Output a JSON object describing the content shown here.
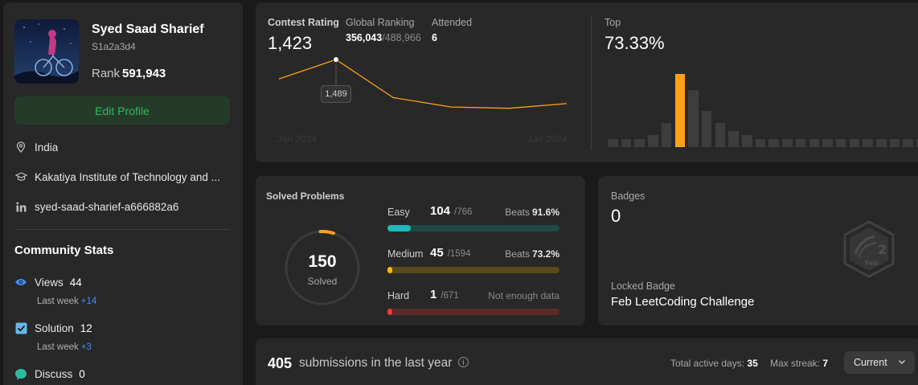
{
  "profile": {
    "name": "Syed Saad Sharief",
    "handle": "S1a2a3d4",
    "rank_label": "Rank",
    "rank_value": "591,943",
    "edit_label": "Edit Profile",
    "location": "India",
    "school": "Kakatiya Institute of Technology and ...",
    "linkedin": "syed-saad-sharief-a666882a6"
  },
  "community": {
    "title": "Community Stats",
    "views": {
      "label": "Views",
      "value": "44",
      "lw_label": "Last week",
      "lw_delta": "+14"
    },
    "solution": {
      "label": "Solution",
      "value": "12",
      "lw_label": "Last week",
      "lw_delta": "+3"
    },
    "discuss": {
      "label": "Discuss",
      "value": "0"
    }
  },
  "contest": {
    "rating_label": "Contest Rating",
    "rating_value": "1,423",
    "global_label": "Global Ranking",
    "global_value": "356,043",
    "global_total": "/488,966",
    "attended_label": "Attended",
    "attended_value": "6",
    "top_label": "Top",
    "top_value": "73.33%",
    "tooltip": "1,489",
    "x_start": "Jan 2024",
    "x_end": "Jan 2024",
    "rating_points": [
      1460,
      1489,
      1432,
      1418,
      1416,
      1423
    ],
    "histogram": [
      2,
      2,
      2,
      3,
      6,
      18,
      14,
      9,
      6,
      4,
      3,
      2,
      2,
      2,
      2,
      2,
      2,
      2,
      2,
      2,
      2,
      2,
      2,
      2,
      2
    ],
    "histogram_active_index": 5
  },
  "solved": {
    "title": "Solved Problems",
    "total": "150",
    "total_label": "Solved",
    "easy": {
      "name": "Easy",
      "count": "104",
      "total": "/766",
      "beats_label": "Beats",
      "beats": "91.6%",
      "ratio": 0.136
    },
    "medium": {
      "name": "Medium",
      "count": "45",
      "total": "/1594",
      "beats_label": "Beats",
      "beats": "73.2%",
      "ratio": 0.028
    },
    "hard": {
      "name": "Hard",
      "count": "1",
      "total": "/671",
      "beats_text": "Not enough data",
      "ratio": 0.0015
    },
    "colors": {
      "easy": "#1cbaba",
      "medium": "#ffb700",
      "hard": "#f63737"
    }
  },
  "badges": {
    "label": "Badges",
    "count": "0",
    "locked_label": "Locked Badge",
    "locked_name": "Feb LeetCoding Challenge",
    "badge_glyph": "2",
    "badge_month": "Feb"
  },
  "submissions": {
    "count": "405",
    "text": "submissions in the last year",
    "active_label": "Total active days:",
    "active_value": "35",
    "streak_label": "Max streak:",
    "streak_value": "7",
    "select_label": "Current"
  }
}
